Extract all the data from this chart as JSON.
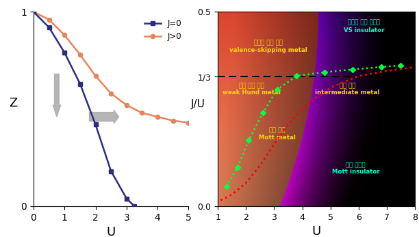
{
  "left_panel": {
    "J0_x": [
      0,
      0.5,
      1.0,
      1.5,
      2.0,
      2.5,
      3.0,
      3.25
    ],
    "J0_y": [
      1.0,
      0.92,
      0.79,
      0.63,
      0.42,
      0.18,
      0.04,
      0.0
    ],
    "Jpos_x": [
      0,
      0.5,
      1.0,
      1.5,
      2.0,
      2.5,
      3.0,
      3.5,
      4.0,
      4.5,
      5.0
    ],
    "Jpos_y": [
      1.0,
      0.96,
      0.88,
      0.78,
      0.67,
      0.58,
      0.52,
      0.48,
      0.46,
      0.44,
      0.43
    ],
    "J0_color": "#2B2D7E",
    "Jpos_color": "#E8845A",
    "xlabel": "U",
    "ylabel": "Z",
    "xlim": [
      0,
      5
    ],
    "ylim": [
      0,
      1
    ],
    "xticks": [
      0,
      1,
      2,
      3,
      4,
      5
    ],
    "yticks": [
      0,
      1
    ],
    "legend_J0": "J=0",
    "legend_Jpos": "J>0"
  },
  "right_panel": {
    "xlabel": "U",
    "ylabel": "J/U",
    "xlim": [
      1,
      8
    ],
    "ylim": [
      0.0,
      0.5
    ],
    "xticks": [
      1,
      2,
      3,
      4,
      5,
      6,
      7,
      8
    ],
    "ytick_vals": [
      0.0,
      0.3333,
      0.5
    ],
    "ytick_labels": [
      "0.0",
      "1/3",
      "0.5"
    ],
    "hline_y": 0.3333,
    "green_dots_x": [
      1.3,
      1.7,
      2.1,
      2.6,
      3.1,
      3.8,
      4.8,
      5.8,
      6.8,
      7.5
    ],
    "green_dots_y": [
      0.05,
      0.1,
      0.17,
      0.24,
      0.3,
      0.335,
      0.345,
      0.352,
      0.358,
      0.362
    ],
    "red_dash_x": [
      1.1,
      1.5,
      2.0,
      2.5,
      3.0,
      3.5,
      4.0,
      4.5,
      5.0,
      5.5,
      6.0,
      7.0,
      8.0
    ],
    "red_dash_y": [
      0.015,
      0.03,
      0.06,
      0.105,
      0.16,
      0.21,
      0.25,
      0.28,
      0.305,
      0.32,
      0.335,
      0.348,
      0.358
    ],
    "label_vs_ko": "원자가 결학 절연체",
    "label_vs_en": "VS insulator",
    "label_vsm_ko": "원자가 결학 금속",
    "label_vsm_en": "valence-skipping metal",
    "label_whm_ko": "약한 훈트 금속",
    "label_whm_en": "weak Hund metal",
    "label_im_ko": "혼성 금속",
    "label_im_en": "intermediate metal",
    "label_mm_ko": "모트 금속",
    "label_mm_en": "Mott metal",
    "label_mi_ko": "모트 절연체",
    "label_mi_en": "Mott insulator",
    "cyan_color": "#00FFCC",
    "yellow_color": "#FFD700",
    "green_dot_color": "#00FF44"
  }
}
